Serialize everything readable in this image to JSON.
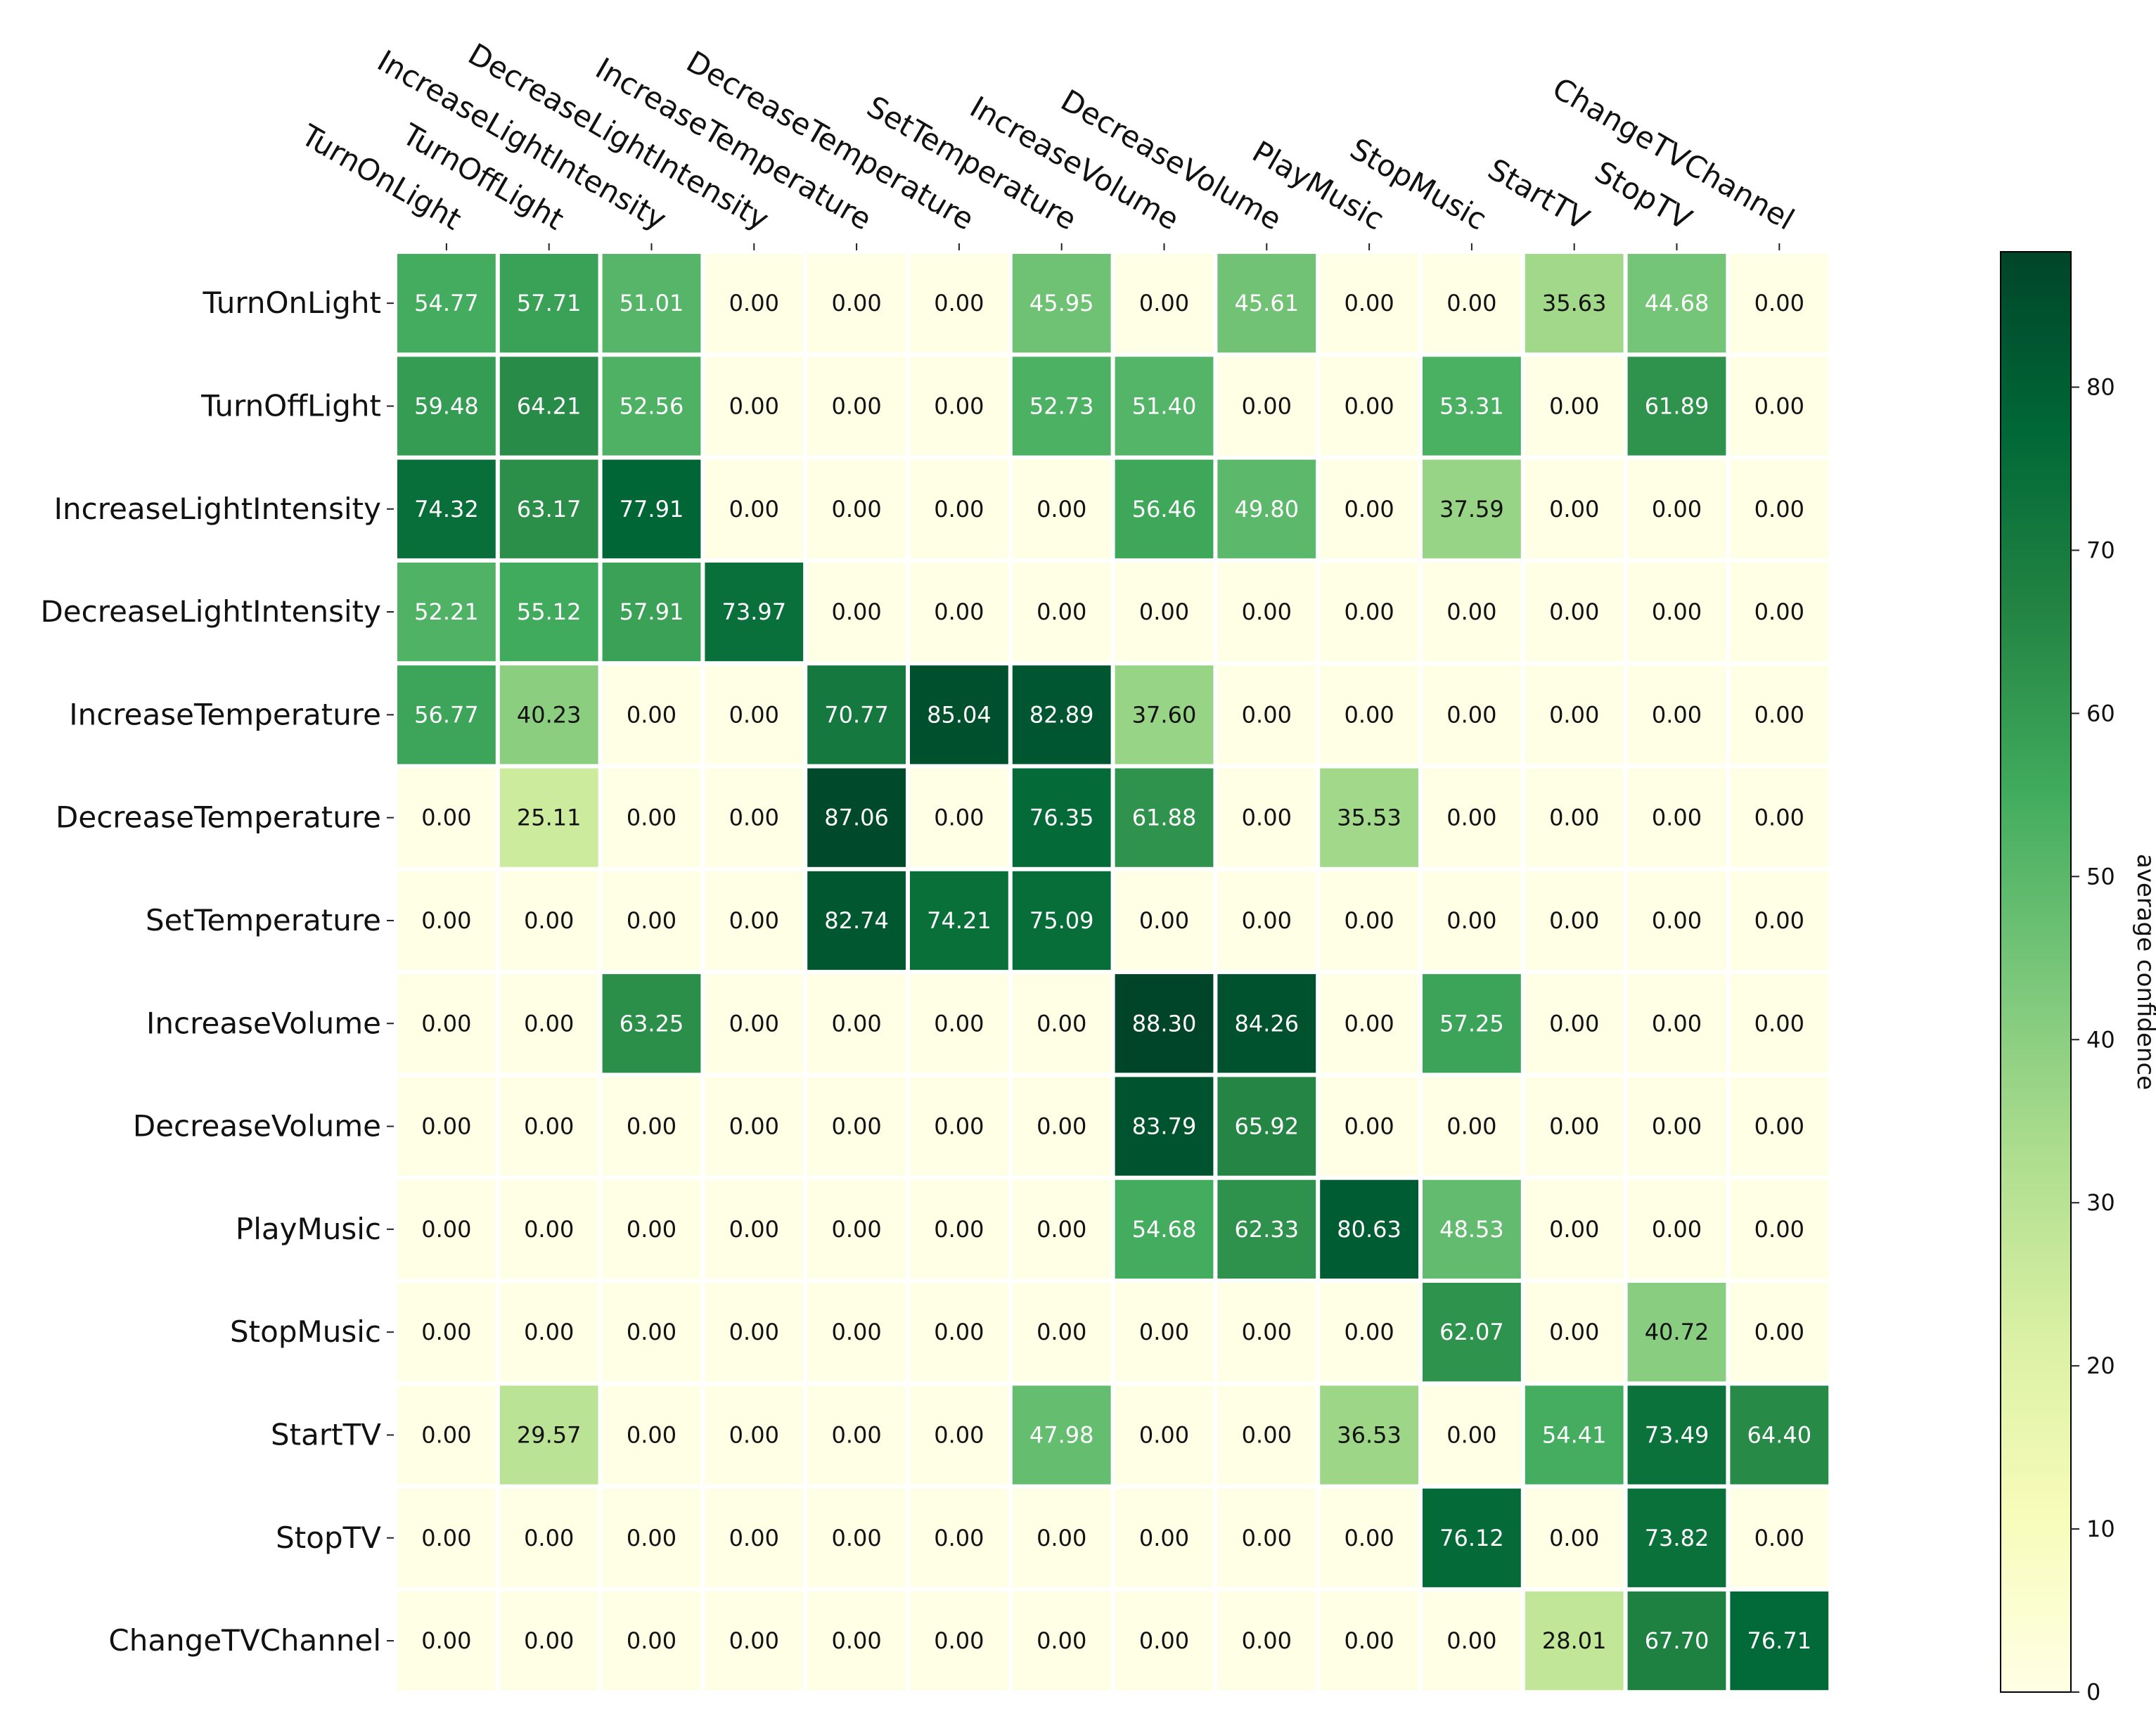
{
  "chart_data": {
    "type": "heatmap",
    "title": "",
    "rows": [
      "TurnOnLight",
      "TurnOffLight",
      "IncreaseLightIntensity",
      "DecreaseLightIntensity",
      "IncreaseTemperature",
      "DecreaseTemperature",
      "SetTemperature",
      "IncreaseVolume",
      "DecreaseVolume",
      "PlayMusic",
      "StopMusic",
      "StartTV",
      "StopTV",
      "ChangeTVChannel"
    ],
    "columns": [
      "TurnOnLight",
      "TurnOffLight",
      "IncreaseLightIntensity",
      "DecreaseLightIntensity",
      "IncreaseTemperature",
      "DecreaseTemperature",
      "SetTemperature",
      "IncreaseVolume",
      "DecreaseVolume",
      "PlayMusic",
      "StopMusic",
      "StartTV",
      "StopTV",
      "ChangeTVChannel"
    ],
    "values": [
      [
        54.77,
        57.71,
        51.01,
        0.0,
        0.0,
        0.0,
        45.95,
        0.0,
        45.61,
        0.0,
        0.0,
        35.63,
        44.68,
        0.0
      ],
      [
        59.48,
        64.21,
        52.56,
        0.0,
        0.0,
        0.0,
        52.73,
        51.4,
        0.0,
        0.0,
        53.31,
        0.0,
        61.89,
        0.0
      ],
      [
        74.32,
        63.17,
        77.91,
        0.0,
        0.0,
        0.0,
        0.0,
        56.46,
        49.8,
        0.0,
        37.59,
        0.0,
        0.0,
        0.0
      ],
      [
        52.21,
        55.12,
        57.91,
        73.97,
        0.0,
        0.0,
        0.0,
        0.0,
        0.0,
        0.0,
        0.0,
        0.0,
        0.0,
        0.0
      ],
      [
        56.77,
        40.23,
        0.0,
        0.0,
        70.77,
        85.04,
        82.89,
        37.6,
        0.0,
        0.0,
        0.0,
        0.0,
        0.0,
        0.0
      ],
      [
        0.0,
        25.11,
        0.0,
        0.0,
        87.06,
        0.0,
        76.35,
        61.88,
        0.0,
        35.53,
        0.0,
        0.0,
        0.0,
        0.0
      ],
      [
        0.0,
        0.0,
        0.0,
        0.0,
        82.74,
        74.21,
        75.09,
        0.0,
        0.0,
        0.0,
        0.0,
        0.0,
        0.0,
        0.0
      ],
      [
        0.0,
        0.0,
        63.25,
        0.0,
        0.0,
        0.0,
        0.0,
        88.3,
        84.26,
        0.0,
        57.25,
        0.0,
        0.0,
        0.0
      ],
      [
        0.0,
        0.0,
        0.0,
        0.0,
        0.0,
        0.0,
        0.0,
        83.79,
        65.92,
        0.0,
        0.0,
        0.0,
        0.0,
        0.0
      ],
      [
        0.0,
        0.0,
        0.0,
        0.0,
        0.0,
        0.0,
        0.0,
        54.68,
        62.33,
        80.63,
        48.53,
        0.0,
        0.0,
        0.0
      ],
      [
        0.0,
        0.0,
        0.0,
        0.0,
        0.0,
        0.0,
        0.0,
        0.0,
        0.0,
        0.0,
        62.07,
        0.0,
        40.72,
        0.0
      ],
      [
        0.0,
        29.57,
        0.0,
        0.0,
        0.0,
        0.0,
        47.98,
        0.0,
        0.0,
        36.53,
        0.0,
        54.41,
        73.49,
        64.4
      ],
      [
        0.0,
        0.0,
        0.0,
        0.0,
        0.0,
        0.0,
        0.0,
        0.0,
        0.0,
        0.0,
        76.12,
        0.0,
        73.82,
        0.0
      ],
      [
        0.0,
        0.0,
        0.0,
        0.0,
        0.0,
        0.0,
        0.0,
        0.0,
        0.0,
        0.0,
        0.0,
        28.01,
        67.7,
        76.71
      ]
    ],
    "colorbar": {
      "label": "average confidence",
      "range": [
        0,
        88.3
      ],
      "ticks": [
        0,
        10,
        20,
        30,
        40,
        50,
        60,
        70,
        80
      ],
      "colormap": "YlGn",
      "stops": [
        "#ffffe5",
        "#f7fcb9",
        "#d9f0a3",
        "#addd8e",
        "#78c679",
        "#41ab5d",
        "#238443",
        "#006837",
        "#004529"
      ]
    },
    "grid": false
  }
}
